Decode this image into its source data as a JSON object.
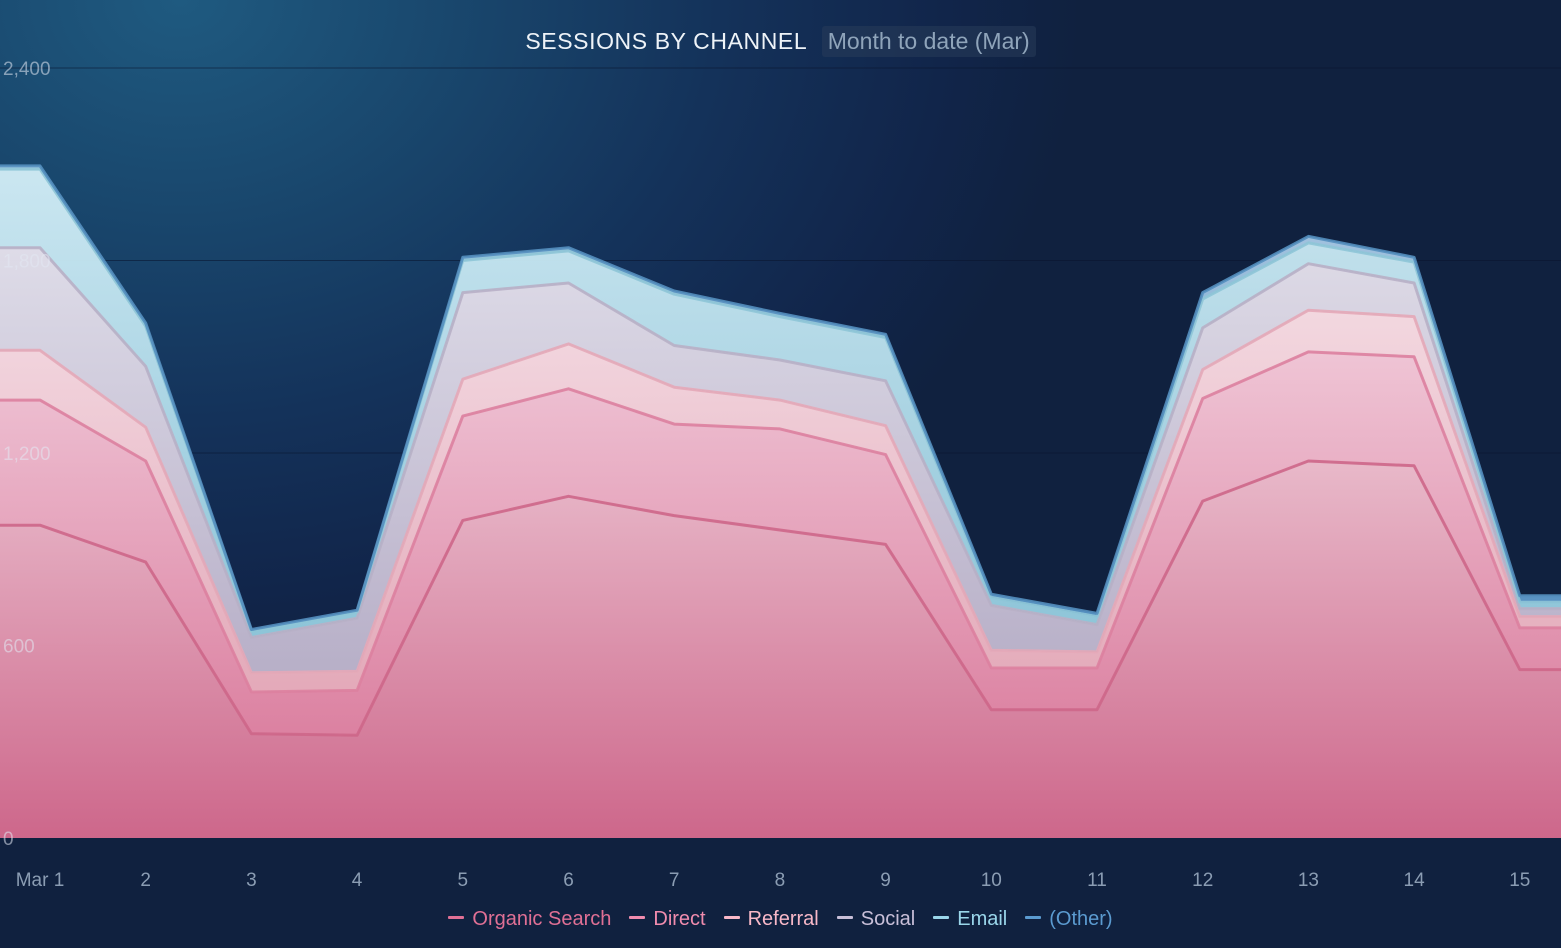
{
  "chart_data": {
    "type": "area",
    "stacked": true,
    "title": "SESSIONS BY CHANNEL",
    "subtitle": "Month to date (Mar)",
    "categories": [
      "Mar 1",
      "2",
      "3",
      "4",
      "5",
      "6",
      "7",
      "8",
      "9",
      "10",
      "11",
      "12",
      "13",
      "14",
      "15"
    ],
    "ylim": [
      0,
      2400
    ],
    "yticks": [
      {
        "value": 0,
        "label": "0"
      },
      {
        "value": 600,
        "label": "600"
      },
      {
        "value": 1200,
        "label": "1,200"
      },
      {
        "value": 1800,
        "label": "1,800"
      },
      {
        "value": 2400,
        "label": "2,400"
      }
    ],
    "series": [
      {
        "name": "Organic Search",
        "color": "#e07095",
        "values": [
          975,
          860,
          325,
          320,
          990,
          1065,
          1005,
          960,
          915,
          400,
          400,
          1050,
          1175,
          1160,
          525
        ]
      },
      {
        "name": "Direct",
        "color": "#f08cae",
        "values": [
          390,
          315,
          130,
          140,
          325,
          335,
          285,
          315,
          280,
          130,
          130,
          320,
          340,
          340,
          130
        ]
      },
      {
        "name": "Referral",
        "color": "#f8b8c8",
        "values": [
          155,
          105,
          60,
          60,
          115,
          140,
          115,
          90,
          90,
          55,
          50,
          90,
          130,
          125,
          35
        ]
      },
      {
        "name": "Social",
        "color": "#c8bfd8",
        "values": [
          320,
          190,
          110,
          165,
          270,
          190,
          130,
          125,
          140,
          140,
          85,
          130,
          145,
          105,
          25
        ]
      },
      {
        "name": "Email",
        "color": "#9ad6ea",
        "values": [
          245,
          125,
          20,
          20,
          100,
          100,
          160,
          135,
          135,
          25,
          25,
          90,
          65,
          65,
          20
        ]
      },
      {
        "name": "(Other)",
        "color": "#5b9bd0",
        "values": [
          10,
          10,
          5,
          5,
          10,
          10,
          10,
          10,
          10,
          10,
          10,
          20,
          20,
          15,
          20
        ]
      }
    ]
  }
}
